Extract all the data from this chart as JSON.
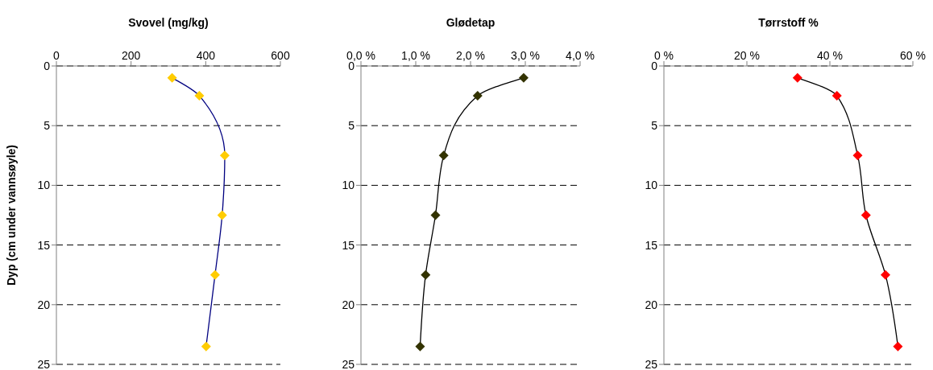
{
  "chart_data": [
    {
      "type": "line",
      "title": "Svovel (mg/kg)",
      "ylabel": "Dyp (cm under vannsøyle)",
      "x": [
        310,
        383,
        451,
        444,
        425,
        401
      ],
      "xlim": [
        0,
        600
      ],
      "xticks": [
        0,
        200,
        400,
        600
      ],
      "ylim": [
        25,
        0
      ],
      "yticks": [
        0,
        5,
        10,
        15,
        20,
        25
      ],
      "grid": "y",
      "marker": "diamond",
      "line_style": "solid",
      "series": [
        {
          "color": "#000080",
          "colors": [
            "#ffcc00",
            "#ffcc00",
            "#ffcc00",
            "#ffcc00",
            "#ffcc00",
            "#ffcc00"
          ],
          "values": [
            1,
            2.5,
            7.5,
            12.5,
            17.5,
            23.5
          ]
        }
      ]
    },
    {
      "type": "line",
      "title": "Glødetap",
      "x": [
        2.97,
        2.13,
        1.51,
        1.36,
        1.18,
        1.08
      ],
      "xlim": [
        0,
        4
      ],
      "xticks": [
        {
          "value": 0,
          "label": "0,0 %"
        },
        {
          "value": 1,
          "label": "1,0 %"
        },
        {
          "value": 2,
          "label": "2,0 %"
        },
        {
          "value": 3,
          "label": "3,0 %"
        },
        {
          "value": 4,
          "label": "4,0 %"
        }
      ],
      "ylim": [
        25,
        0
      ],
      "yticks": [
        0,
        5,
        10,
        15,
        20,
        25
      ],
      "grid": "y",
      "marker": "diamond",
      "line_style": "solid",
      "series": [
        {
          "color": "#000000",
          "colors": [
            "#333300",
            "#333300",
            "#333300",
            "#333300",
            "#333300",
            "#333300"
          ],
          "values": [
            1,
            2.5,
            7.5,
            12.5,
            17.5,
            23.5
          ]
        }
      ]
    },
    {
      "type": "line",
      "title": "Tørrstoff %",
      "x": [
        32.2,
        41.7,
        46.7,
        48.7,
        53.4,
        56.4
      ],
      "xlim": [
        0,
        60
      ],
      "xticks": [
        {
          "value": 0,
          "label": "0 %"
        },
        {
          "value": 20,
          "label": "20 %"
        },
        {
          "value": 40,
          "label": "40 %"
        },
        {
          "value": 60,
          "label": "60 %"
        }
      ],
      "ylim": [
        25,
        0
      ],
      "yticks": [
        0,
        5,
        10,
        15,
        20,
        25
      ],
      "grid": "y",
      "marker": "diamond",
      "line_style": "solid",
      "series": [
        {
          "color": "#000000",
          "colors": [
            "#ff0000",
            "#ff0000",
            "#ff0000",
            "#ff0000",
            "#ff0000",
            "#ff0000"
          ],
          "values": [
            1,
            2.5,
            7.5,
            12.5,
            17.5,
            23.5
          ]
        }
      ]
    }
  ]
}
